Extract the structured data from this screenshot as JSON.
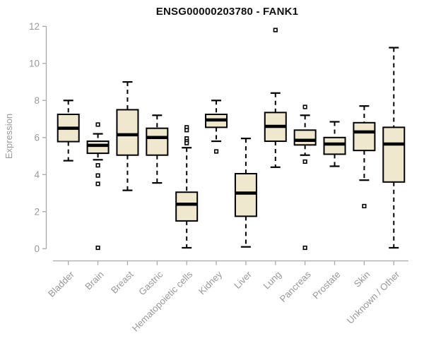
{
  "chart": {
    "title": "ENSG00000203780 - FANK1",
    "ylabel": "Expression"
  },
  "colors": {
    "box_fill": "#EFE8CF",
    "box_stroke": "#000000",
    "median": "#000000",
    "whisker": "#000000",
    "outlier_fill": "#FFFFFF",
    "axis": "#A8A8A8",
    "tick_label": "#999999",
    "title": "#111111",
    "background": "#FFFFFF"
  },
  "chart_data": {
    "type": "boxplot",
    "title": "ENSG00000203780 - FANK1",
    "xlabel": "",
    "ylabel": "Expression",
    "ylim": [
      0,
      12
    ],
    "yticks": [
      0,
      2,
      4,
      6,
      8,
      10,
      12
    ],
    "grid": false,
    "legend": false,
    "categories": [
      "Bladder",
      "Brain",
      "Breast",
      "Gastric",
      "Hematopoietic cells",
      "Kidney",
      "Liver",
      "Lung",
      "Pancreas",
      "Prostate",
      "Skin",
      "Unknown / Other"
    ],
    "series": [
      {
        "category": "Bladder",
        "low": 4.75,
        "q1": 5.78,
        "median": 6.5,
        "q3": 7.25,
        "high": 8.0,
        "outliers": []
      },
      {
        "category": "Brain",
        "low": 4.8,
        "q1": 5.15,
        "median": 5.58,
        "q3": 5.8,
        "high": 6.2,
        "outliers": [
          6.7,
          4.5,
          3.95,
          3.5,
          0.05
        ]
      },
      {
        "category": "Breast",
        "low": 3.15,
        "q1": 5.05,
        "median": 6.15,
        "q3": 7.5,
        "high": 9.0,
        "outliers": []
      },
      {
        "category": "Gastric",
        "low": 3.55,
        "q1": 5.05,
        "median": 6.0,
        "q3": 6.5,
        "high": 7.2,
        "outliers": []
      },
      {
        "category": "Hematopoietic cells",
        "low": 0.05,
        "q1": 1.5,
        "median": 2.4,
        "q3": 3.05,
        "high": 5.45,
        "outliers": [
          6.55,
          6.4,
          5.95,
          5.8,
          5.7
        ]
      },
      {
        "category": "Kidney",
        "low": 5.8,
        "q1": 6.55,
        "median": 6.95,
        "q3": 7.25,
        "high": 8.0,
        "outliers": [
          5.25
        ]
      },
      {
        "category": "Liver",
        "low": 0.1,
        "q1": 1.75,
        "median": 3.0,
        "q3": 4.05,
        "high": 5.95,
        "outliers": []
      },
      {
        "category": "Lung",
        "low": 4.4,
        "q1": 5.8,
        "median": 6.6,
        "q3": 7.35,
        "high": 8.4,
        "outliers": [
          11.8
        ]
      },
      {
        "category": "Pancreas",
        "low": 5.05,
        "q1": 5.6,
        "median": 5.85,
        "q3": 6.4,
        "high": 7.2,
        "outliers": [
          7.65,
          4.7,
          0.05
        ]
      },
      {
        "category": "Prostate",
        "low": 4.45,
        "q1": 5.1,
        "median": 5.65,
        "q3": 6.0,
        "high": 6.85,
        "outliers": []
      },
      {
        "category": "Skin",
        "low": 3.7,
        "q1": 5.3,
        "median": 6.3,
        "q3": 6.8,
        "high": 7.7,
        "outliers": [
          2.3
        ]
      },
      {
        "category": "Unknown / Other",
        "low": 0.05,
        "q1": 3.6,
        "median": 5.65,
        "q3": 6.55,
        "high": 10.85,
        "outliers": []
      }
    ]
  }
}
